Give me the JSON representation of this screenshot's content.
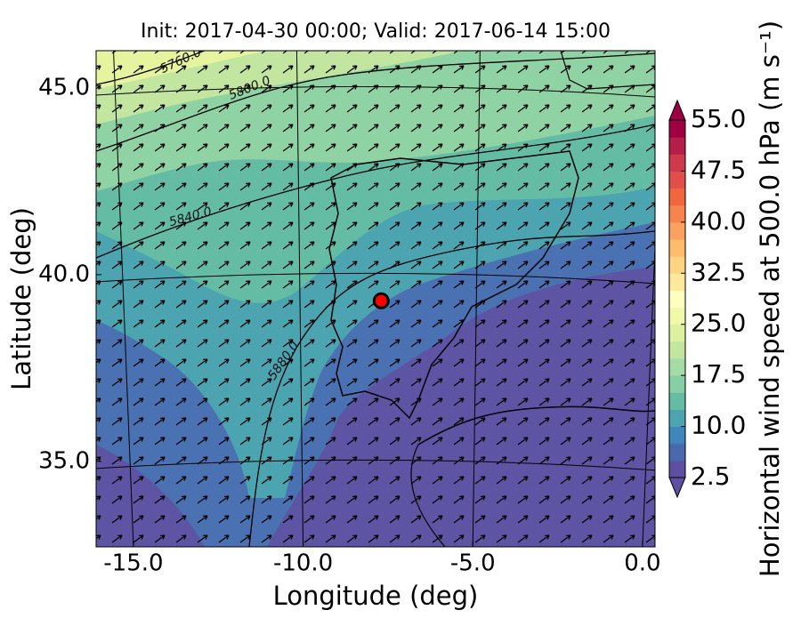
{
  "chart_data": {
    "type": "map",
    "title": "Init: 2017-04-30 00:00; Valid: 2017-06-14 15:00",
    "xlabel": "Longitude (deg)",
    "ylabel": "Latitude (deg)",
    "xlim": [
      -16.1,
      0.37
    ],
    "ylim": [
      32.71,
      46.0
    ],
    "xticks": [
      {
        "value": -15,
        "label": "-15.0"
      },
      {
        "value": -10,
        "label": "-10.0"
      },
      {
        "value": -5,
        "label": "-5.0"
      },
      {
        "value": 0,
        "label": "0.0"
      }
    ],
    "yticks": [
      {
        "value": 35,
        "label": "35.0"
      },
      {
        "value": 40,
        "label": "40.0"
      },
      {
        "value": 45,
        "label": "45.0"
      }
    ],
    "grid": true,
    "contour_labels": [
      "5760.0",
      "5800.0",
      "5840.0",
      "5880.0"
    ],
    "points": [
      {
        "x": -7.7,
        "y": 39.3,
        "color": "#ff0000"
      }
    ],
    "colorbar": {
      "label": "Horizontal wind speed at 500.0 hPa (m s⁻¹)",
      "lim": [
        2.5,
        55
      ],
      "ticks": [
        2.5,
        {
          "value": 10,
          "label": "10.0"
        },
        17.5,
        {
          "value": 25,
          "label": "25.0"
        },
        32.5,
        {
          "value": 40,
          "label": "40.0"
        },
        47.5,
        {
          "value": 55,
          "label": "55.0"
        }
      ],
      "colors": [
        "#5e4fa2",
        "#4a68ae",
        "#3f86bc",
        "#4da4b1",
        "#65bca5",
        "#86cfa5",
        "#a5dba4",
        "#c2e69f",
        "#dcf09e",
        "#f0f9a8",
        "#fffebe",
        "#fee89a",
        "#fed481",
        "#fdbb6c",
        "#fca05f",
        "#f7844e",
        "#f0673f",
        "#e04f4a",
        "#cc3a4c",
        "#b2204a",
        "#9e0142"
      ],
      "extend": "both"
    }
  }
}
